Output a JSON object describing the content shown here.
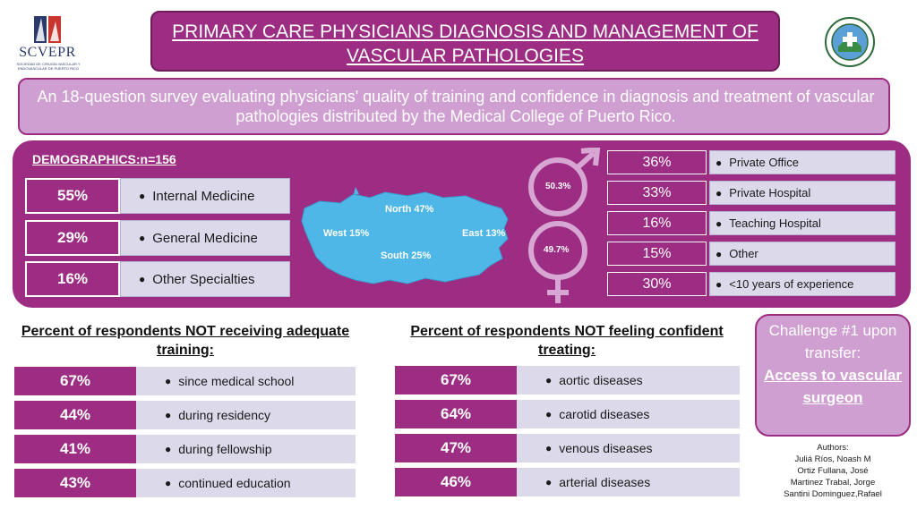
{
  "logos": {
    "left_name": "SCVEPR",
    "left_sub": "SOCIEDAD DE CIRUGÍA VASCULAR Y ENDOVASCULAR DE PUERTO RICO"
  },
  "title": "PRIMARY CARE PHYSICIANS DIAGNOSIS AND MANAGEMENT OF VASCULAR PATHOLOGIES",
  "subtitle": "An 18-question survey evaluating physicians' quality of training and confidence in diagnosis and treatment of vascular pathologies distributed by the Medical College of Puerto Rico.",
  "demographics": {
    "heading": "DEMOGRAPHICS:n=156",
    "specialties": [
      {
        "pct": "55%",
        "label": "Internal Medicine"
      },
      {
        "pct": "29%",
        "label": "General Medicine"
      },
      {
        "pct": "16%",
        "label": "Other Specialties"
      }
    ],
    "map_regions": {
      "north": "North 47%",
      "west": "West 15%",
      "east": "East 13%",
      "south": "South 25%"
    },
    "gender": {
      "male": "50.3%",
      "female": "49.7%"
    },
    "practice": [
      {
        "pct": "36%",
        "label": "Private Office"
      },
      {
        "pct": "33%",
        "label": "Private Hospital"
      },
      {
        "pct": "16%",
        "label": "Teaching Hospital"
      },
      {
        "pct": "15%",
        "label": "Other"
      },
      {
        "pct": "30%",
        "label": "<10 years of experience"
      }
    ]
  },
  "training": {
    "heading": "Percent of respondents NOT receiving adequate training:",
    "rows": [
      {
        "pct": "67%",
        "label": "since medical school"
      },
      {
        "pct": "44%",
        "label": "during residency"
      },
      {
        "pct": "41%",
        "label": "during fellowship"
      },
      {
        "pct": "43%",
        "label": "continued education"
      }
    ]
  },
  "confidence": {
    "heading": "Percent of respondents NOT feeling confident treating:",
    "rows": [
      {
        "pct": "67%",
        "label": "aortic diseases"
      },
      {
        "pct": "64%",
        "label": "carotid diseases"
      },
      {
        "pct": "47%",
        "label": "venous diseases"
      },
      {
        "pct": "46%",
        "label": "arterial diseases"
      }
    ]
  },
  "challenge": {
    "line1": "Challenge #1 upon transfer:",
    "line2": "Access to vascular surgeon"
  },
  "authors": {
    "label": "Authors:",
    "l1": "Juliá Ríos, Noash M",
    "l2": "Ortiz Fullana, José",
    "l3": "Martinez Trabal, Jorge",
    "l4": "Santini Dominguez,Rafael"
  },
  "colors": {
    "purple": "#9c2d83",
    "lavender": "#d09fd2",
    "label_bg": "#dcd9ea",
    "map_blue": "#4fb6e8"
  }
}
